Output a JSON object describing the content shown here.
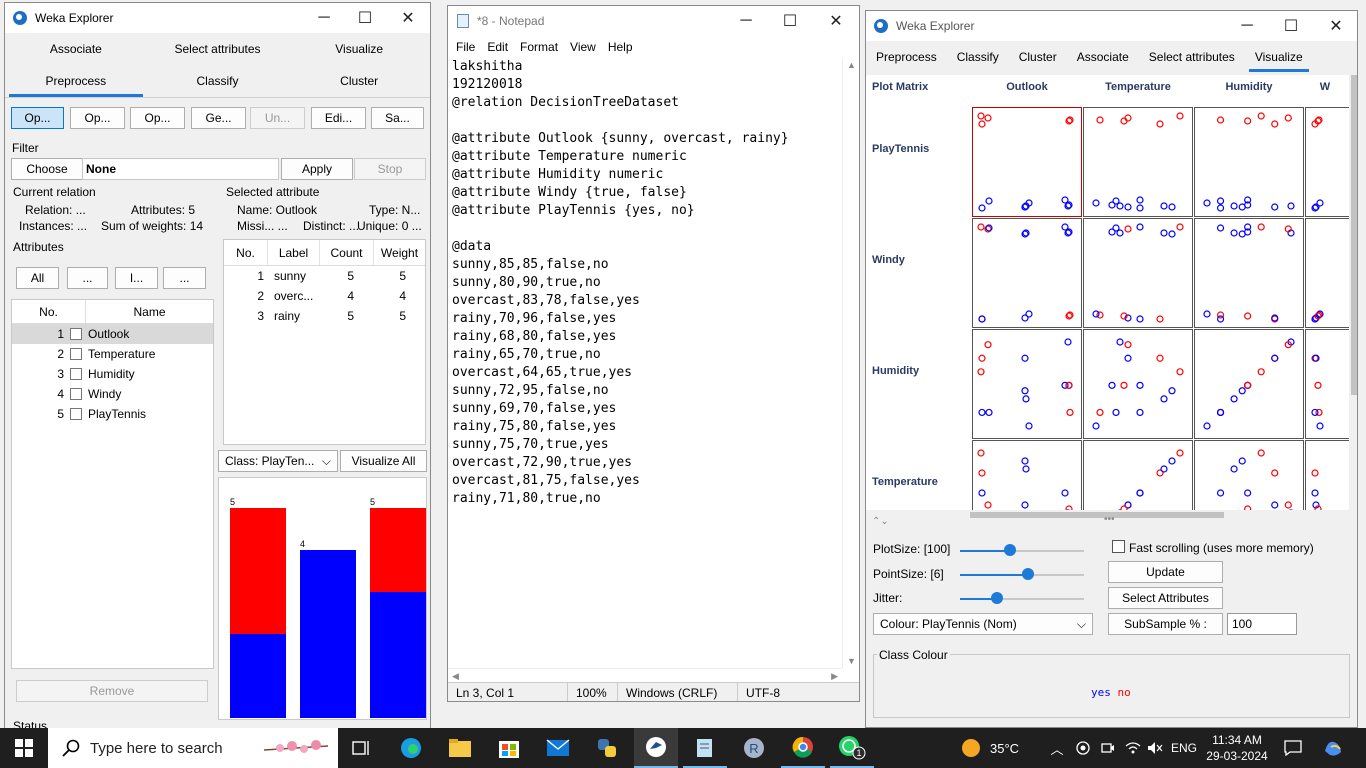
{
  "weka_left": {
    "title": "Weka Explorer",
    "tabs_row1": [
      "Associate",
      "Select attributes",
      "Visualize"
    ],
    "tabs_row2": [
      "Preprocess",
      "Classify",
      "Cluster"
    ],
    "toolbar": [
      "Op...",
      "Op...",
      "Op...",
      "Ge...",
      "Un...",
      "Edi...",
      "Sa..."
    ],
    "filter": {
      "label": "Filter",
      "choose": "Choose",
      "value": "None",
      "apply": "Apply",
      "stop": "Stop"
    },
    "current_relation": {
      "label": "Current relation",
      "relation": "Relation: ...",
      "attributes": "Attributes: 5",
      "instances": "Instances: ...",
      "weights": "Sum of weights: 14"
    },
    "attributes": {
      "label": "Attributes",
      "buttons": [
        "All",
        "...",
        "I...",
        "..."
      ],
      "col_no": "No.",
      "col_name": "Name",
      "rows": [
        {
          "no": "1",
          "name": "Outlook"
        },
        {
          "no": "2",
          "name": "Temperature"
        },
        {
          "no": "3",
          "name": "Humidity"
        },
        {
          "no": "4",
          "name": "Windy"
        },
        {
          "no": "5",
          "name": "PlayTennis"
        }
      ],
      "remove": "Remove"
    },
    "selected_attribute": {
      "label": "Selected attribute",
      "name": "Name: Outlook",
      "type": "Type: N...",
      "missing": "Missi... ...",
      "distinct": "Distinct: ...",
      "unique": "Unique: 0 ...",
      "headers": [
        "No.",
        "Label",
        "Count",
        "Weight"
      ],
      "rows": [
        {
          "no": "1",
          "label": "sunny",
          "count": "5",
          "weight": "5"
        },
        {
          "no": "2",
          "label": "overc...",
          "count": "4",
          "weight": "4"
        },
        {
          "no": "3",
          "label": "rainy",
          "count": "5",
          "weight": "5"
        }
      ]
    },
    "class_select": "Class: PlayTen...",
    "visualize_all": "Visualize All",
    "histogram": {
      "bars": [
        {
          "total": 5,
          "red": 3,
          "blue": 2,
          "label": "5"
        },
        {
          "total": 4,
          "red": 0,
          "blue": 4,
          "label": "4"
        },
        {
          "total": 5,
          "red": 2,
          "blue": 3,
          "label": "5"
        }
      ]
    },
    "status": "Status"
  },
  "notepad": {
    "title": "*8 - Notepad",
    "menu": [
      "File",
      "Edit",
      "Format",
      "View",
      "Help"
    ],
    "lines": [
      "lakshitha",
      "192120018",
      "@relation DecisionTreeDataset",
      "",
      "@attribute Outlook {sunny, overcast, rainy}",
      "@attribute Temperature numeric",
      "@attribute Humidity numeric",
      "@attribute Windy {true, false}",
      "@attribute PlayTennis {yes, no}",
      "",
      "@data",
      "sunny,85,85,false,no",
      "sunny,80,90,true,no",
      "overcast,83,78,false,yes",
      "rainy,70,96,false,yes",
      "rainy,68,80,false,yes",
      "rainy,65,70,true,no",
      "overcast,64,65,true,yes",
      "sunny,72,95,false,no",
      "sunny,69,70,false,yes",
      "rainy,75,80,false,yes",
      "sunny,75,70,true,yes",
      "overcast,72,90,true,yes",
      "overcast,81,75,false,yes",
      "rainy,71,80,true,no"
    ],
    "status": [
      "Ln 3, Col 1",
      "100%",
      "Windows (CRLF)",
      "UTF-8"
    ]
  },
  "weka_right": {
    "title": "Weka Explorer",
    "tabs": [
      "Preprocess",
      "Classify",
      "Cluster",
      "Associate",
      "Select attributes",
      "Visualize"
    ],
    "plot_matrix": "Plot Matrix",
    "columns": [
      "Outlook",
      "Temperature",
      "Humidity",
      "W"
    ],
    "rows": [
      "PlayTennis",
      "Windy",
      "Humidity",
      "Temperature"
    ],
    "plot_size": "PlotSize: [100]",
    "point_size": "PointSize: [6]",
    "jitter": "Jitter:",
    "plot_size_level": 0.4,
    "point_size_level": 0.55,
    "jitter_level": 0.3,
    "fast_scrolling": "Fast scrolling (uses more memory)",
    "update": "Update",
    "select_attributes": "Select Attributes",
    "colour": "Colour: PlayTennis  (Nom)",
    "subsample": "SubSample % :",
    "subsample_value": "100",
    "class_colour": "Class Colour",
    "class_yes": "yes",
    "class_no": "no",
    "colors": {
      "yes": "#0000ff",
      "no": "#ff0000"
    }
  },
  "taskbar": {
    "search": "Type here to search",
    "weather": "35°C",
    "lang": "ENG",
    "time": "11:34 AM",
    "date": "29-03-2024",
    "r_letter": "R",
    "whatsapp_badge": "1"
  }
}
